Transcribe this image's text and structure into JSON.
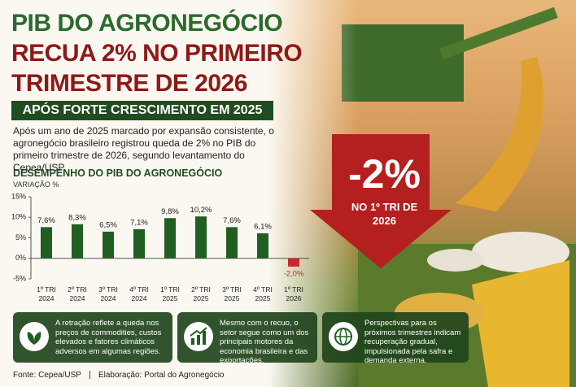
{
  "header": {
    "title_lines": [
      "PIB DO AGRONEGÓCIO",
      "RECUA 2% NO PRIMEIRO",
      "TRIMESTRE DE 2026"
    ],
    "subtitle": "APÓS FORTE CRESCIMENTO EM 2025",
    "intro": "Após um ano de 2025 marcado por expansão consistente, o agronegócio brasileiro registrou queda de 2% no PIB do primeiro trimestre de 2026, segundo levantamento do Cepea/USP."
  },
  "callout": {
    "value": "-2%",
    "text": "NO 1º TRI DE 2026"
  },
  "chart_data": {
    "type": "bar",
    "title": "DESEMPENHO DO PIB DO AGRONEGÓCIO",
    "y_label": "VARIAÇÃO %",
    "categories": [
      "1º TRI 2024",
      "2º TRI 2024",
      "3º TRI 2024",
      "4º TRI 2024",
      "1º TRI 2025",
      "2º TRI 2025",
      "3º TRI 2025",
      "4º TRI 2025",
      "1º TRI 2026"
    ],
    "values": [
      7.6,
      8.3,
      6.5,
      7.1,
      9.8,
      10.2,
      7.6,
      6.1,
      -2.0
    ],
    "value_labels": [
      "7,6%",
      "8,3%",
      "6,5%",
      "7,1%",
      "9,8%",
      "10,2%",
      "7,6%",
      "6,1%",
      "-2,0%"
    ],
    "colors": [
      "#215e22",
      "#215e22",
      "#215e22",
      "#215e22",
      "#215e22",
      "#215e22",
      "#215e22",
      "#215e22",
      "#c62a2a"
    ],
    "ylim": [
      -5,
      15
    ],
    "yticks": [
      {
        "value": -5,
        "label": "-5%"
      },
      {
        "value": 0,
        "label": "0%"
      },
      {
        "value": 5,
        "label": "5%"
      },
      {
        "value": 10,
        "label": "10%"
      },
      {
        "value": 15,
        "label": "15%"
      }
    ],
    "grid": false
  },
  "info_boxes": [
    "A retração reflete a queda nos preços de commodities, custos elevados e fatores climáticos adversos em algumas regiões.",
    "Mesmo com o recuo, o setor segue como um dos principais motores da economia brasileira e das exportações.",
    "Perspectivas para os próximos trimestres indicam recuperação gradual, impulsionada pela safra e demanda externa."
  ],
  "footer": {
    "source": "Fonte: Cepea/USP",
    "credit": "Elaboração: Portal do Agronegócio"
  }
}
